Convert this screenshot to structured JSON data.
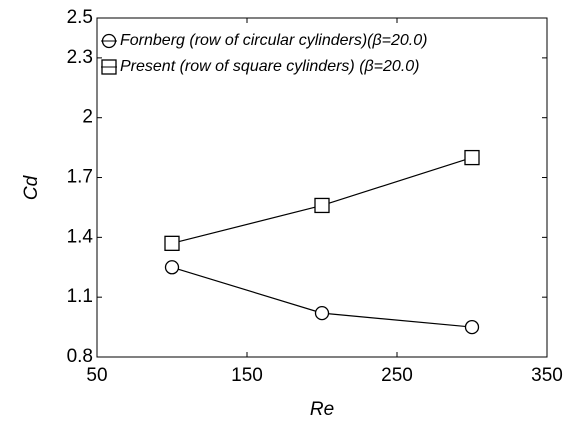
{
  "chart_data": {
    "type": "line",
    "x_label": "Re",
    "y_label": "Cd",
    "xlim": [
      50,
      350
    ],
    "xticks": [
      50,
      150,
      250,
      350
    ],
    "ylim": [
      0.8,
      2.5
    ],
    "yticks": [
      0.8,
      1.1,
      1.4,
      1.7,
      2,
      2.3,
      2.5
    ],
    "legend": "upper left",
    "series": [
      {
        "name": "Fornberg (row of circular cylinders)(β=20.0)",
        "color": "#000000",
        "marker": "circle",
        "x": [
          100,
          200,
          300
        ],
        "values": [
          1.25,
          1.02,
          0.95
        ]
      },
      {
        "name": "Present (row of square cylinders) (β=20.0)",
        "color": "#000000",
        "marker": "square",
        "x": [
          100,
          200,
          300
        ],
        "values": [
          1.37,
          1.56,
          1.8
        ]
      }
    ]
  }
}
